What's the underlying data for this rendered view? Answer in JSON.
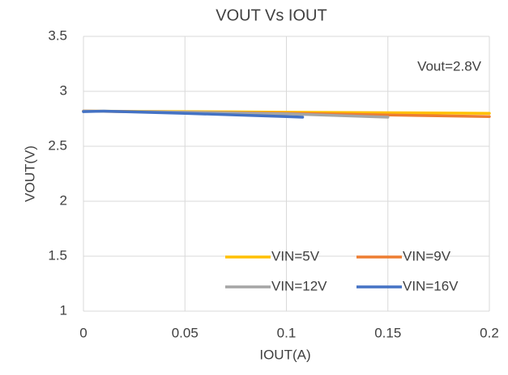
{
  "chart_data": {
    "type": "line",
    "title": "VOUT Vs IOUT",
    "x_label": "IOUT(A)",
    "y_label": "VOUT(V)",
    "annotation": "Vout=2.8V",
    "xlim": [
      0,
      0.2
    ],
    "xticks": [
      0,
      0.05,
      0.1,
      0.15,
      0.2
    ],
    "ylim": [
      1,
      3.5
    ],
    "yticks": [
      1,
      1.5,
      2,
      2.5,
      3,
      3.5
    ],
    "grid": true,
    "series": [
      {
        "name": "VIN=5V",
        "color": "#ffc000",
        "x": [
          0,
          0.05,
          0.1,
          0.15,
          0.2
        ],
        "values": [
          2.82,
          2.815,
          2.81,
          2.805,
          2.8
        ]
      },
      {
        "name": "VIN=9V",
        "color": "#ed7d31",
        "x": [
          0,
          0.05,
          0.1,
          0.15,
          0.2
        ],
        "values": [
          2.82,
          2.81,
          2.8,
          2.785,
          2.77
        ]
      },
      {
        "name": "VIN=12V",
        "color": "#a5a5a5",
        "x": [
          0,
          0.05,
          0.1,
          0.15
        ],
        "values": [
          2.82,
          2.81,
          2.795,
          2.765
        ]
      },
      {
        "name": "VIN=16V",
        "color": "#4472c4",
        "x": [
          0,
          0.01,
          0.05,
          0.1,
          0.108
        ],
        "values": [
          2.815,
          2.82,
          2.8,
          2.77,
          2.765
        ]
      }
    ]
  }
}
